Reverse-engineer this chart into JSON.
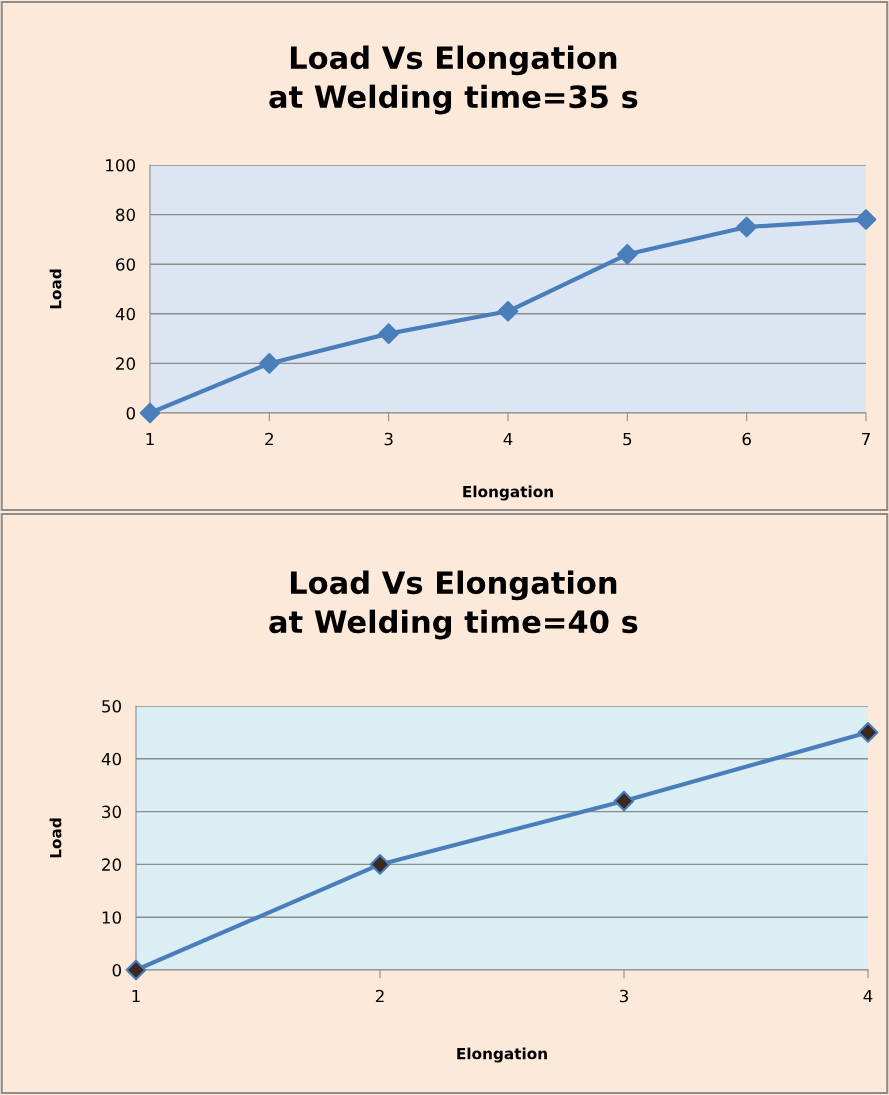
{
  "chart_data": [
    {
      "type": "line",
      "title": "Load Vs Elongation\nat Welding time=35 s",
      "xlabel": "Elongation",
      "ylabel": "Load",
      "x": [
        1,
        2,
        3,
        4,
        5,
        6,
        7
      ],
      "series": [
        {
          "color": "#4a7ebb",
          "values": [
            0,
            20,
            32,
            41,
            64,
            75,
            78
          ]
        }
      ],
      "xlim": [
        1,
        7
      ],
      "xticks": [
        1,
        2,
        3,
        4,
        5,
        6,
        7
      ],
      "ylim": [
        0,
        100
      ],
      "yticks": [
        0,
        20,
        40,
        60,
        80,
        100
      ],
      "grid": "y",
      "marker": "diamond",
      "line_style": "solid"
    },
    {
      "type": "line",
      "title": "Load Vs Elongation\nat Welding time=40 s",
      "xlabel": "Elongation",
      "ylabel": "Load",
      "x": [
        1,
        2,
        3,
        4
      ],
      "series": [
        {
          "color": "#4a7ebb",
          "colors": [
            "#3b2a1e",
            "#3b2a1e",
            "#3b2a1e",
            "#3b2a1e"
          ],
          "values": [
            0,
            20,
            32,
            45
          ]
        }
      ],
      "xlim": [
        1,
        4
      ],
      "xticks": [
        1,
        2,
        3,
        4
      ],
      "ylim": [
        0,
        50
      ],
      "yticks": [
        0,
        10,
        20,
        30,
        40,
        50
      ],
      "grid": "y",
      "marker": "diamond",
      "line_style": "solid"
    }
  ]
}
